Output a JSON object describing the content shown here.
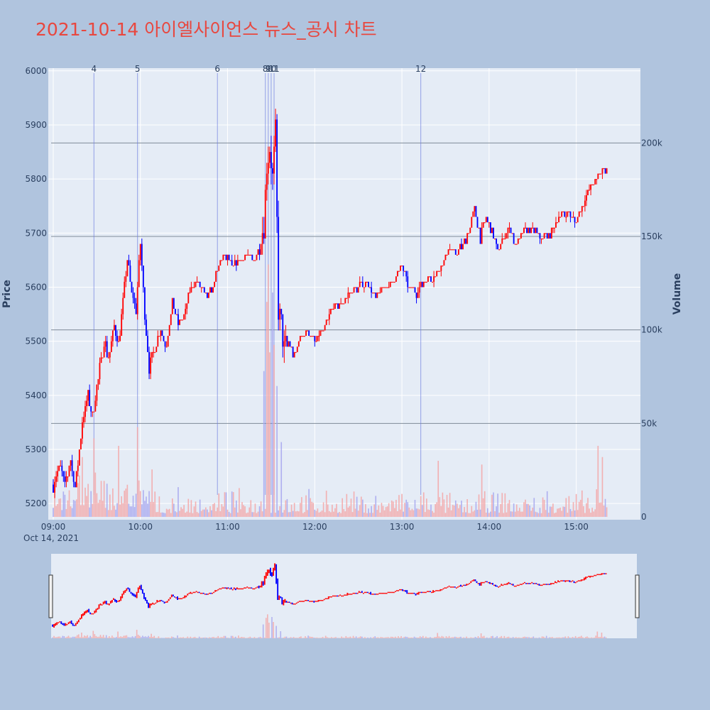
{
  "title": "2021-10-14 아이엘사이언스 뉴스_공시 차트",
  "colors": {
    "up": "#ff0000",
    "down": "#0000ff",
    "vol_up": "#f4a6a6",
    "vol_down": "#a6a6ee",
    "plot_bg": "#e5ecf6",
    "paper_bg": "#b0c4de",
    "title": "#e8473f",
    "news_line": "#6f7fe0"
  },
  "chart_data": {
    "type": "candlestick",
    "y_axis": {
      "label": "Price",
      "range": [
        5170,
        6005
      ],
      "ticks": [
        5200,
        5300,
        5400,
        5500,
        5600,
        5700,
        5800,
        5900,
        6000
      ],
      "tick_labels": [
        "5200",
        "5300",
        "5400",
        "5500",
        "5600",
        "5700",
        "5800",
        "5900",
        "6000"
      ]
    },
    "y2_axis": {
      "label": "Volume",
      "range": [
        0,
        240000
      ],
      "ticks": [
        0,
        50000,
        100000,
        150000,
        200000
      ],
      "tick_labels": [
        "0",
        "50k",
        "100k",
        "150k",
        "200k"
      ]
    },
    "x_axis": {
      "range": [
        "09:00",
        "15:30"
      ],
      "ticks": [
        "09:00",
        "10:00",
        "11:00",
        "12:00",
        "13:00",
        "14:00",
        "15:00"
      ],
      "tick_labels": [
        "09:00",
        "10:00",
        "11:00",
        "12:00",
        "13:00",
        "14:00",
        "15:00"
      ],
      "date_label": "Oct 14, 2021"
    },
    "news_markers": [
      {
        "label": "4",
        "time": "09:28"
      },
      {
        "label": "5",
        "time": "09:58"
      },
      {
        "label": "6",
        "time": "10:53"
      },
      {
        "label": "8",
        "time": "11:26"
      },
      {
        "label": "9",
        "time": "11:28"
      },
      {
        "label": "10",
        "time": "11:30"
      },
      {
        "label": "11",
        "time": "11:32"
      },
      {
        "label": "12",
        "time": "13:13"
      }
    ],
    "price_path": [
      [
        "09:00",
        5235
      ],
      [
        "09:05",
        5270
      ],
      [
        "09:08",
        5235
      ],
      [
        "09:12",
        5280
      ],
      [
        "09:15",
        5230
      ],
      [
        "09:20",
        5350
      ],
      [
        "09:24",
        5400
      ],
      [
        "09:27",
        5360
      ],
      [
        "09:31",
        5430
      ],
      [
        "09:35",
        5500
      ],
      [
        "09:38",
        5470
      ],
      [
        "09:42",
        5530
      ],
      [
        "09:45",
        5500
      ],
      [
        "09:48",
        5570
      ],
      [
        "09:51",
        5650
      ],
      [
        "09:54",
        5590
      ],
      [
        "09:57",
        5560
      ],
      [
        "10:00",
        5680
      ],
      [
        "10:03",
        5550
      ],
      [
        "10:06",
        5450
      ],
      [
        "10:10",
        5490
      ],
      [
        "10:14",
        5520
      ],
      [
        "10:18",
        5490
      ],
      [
        "10:22",
        5570
      ],
      [
        "10:26",
        5530
      ],
      [
        "10:30",
        5550
      ],
      [
        "10:35",
        5600
      ],
      [
        "10:40",
        5610
      ],
      [
        "10:45",
        5580
      ],
      [
        "10:50",
        5600
      ],
      [
        "10:54",
        5640
      ],
      [
        "10:58",
        5660
      ],
      [
        "11:03",
        5640
      ],
      [
        "11:08",
        5650
      ],
      [
        "11:13",
        5660
      ],
      [
        "11:18",
        5650
      ],
      [
        "11:22",
        5670
      ],
      [
        "11:25",
        5720
      ],
      [
        "11:27",
        5830
      ],
      [
        "11:29",
        5860
      ],
      [
        "11:31",
        5800
      ],
      [
        "11:33",
        5880
      ],
      [
        "11:35",
        5560
      ],
      [
        "11:37",
        5530
      ],
      [
        "11:39",
        5480
      ],
      [
        "11:42",
        5500
      ],
      [
        "11:46",
        5470
      ],
      [
        "11:50",
        5510
      ],
      [
        "11:55",
        5520
      ],
      [
        "12:00",
        5500
      ],
      [
        "12:06",
        5520
      ],
      [
        "12:12",
        5560
      ],
      [
        "12:18",
        5570
      ],
      [
        "12:24",
        5590
      ],
      [
        "12:30",
        5600
      ],
      [
        "12:36",
        5610
      ],
      [
        "12:42",
        5580
      ],
      [
        "12:48",
        5600
      ],
      [
        "12:54",
        5610
      ],
      [
        "13:00",
        5640
      ],
      [
        "13:05",
        5600
      ],
      [
        "13:10",
        5590
      ],
      [
        "13:15",
        5610
      ],
      [
        "13:22",
        5620
      ],
      [
        "13:28",
        5640
      ],
      [
        "13:32",
        5670
      ],
      [
        "13:37",
        5660
      ],
      [
        "13:42",
        5680
      ],
      [
        "13:46",
        5700
      ],
      [
        "13:50",
        5750
      ],
      [
        "13:54",
        5690
      ],
      [
        "13:58",
        5730
      ],
      [
        "14:02",
        5700
      ],
      [
        "14:06",
        5670
      ],
      [
        "14:10",
        5690
      ],
      [
        "14:14",
        5710
      ],
      [
        "14:18",
        5680
      ],
      [
        "14:24",
        5700
      ],
      [
        "14:30",
        5710
      ],
      [
        "14:36",
        5690
      ],
      [
        "14:42",
        5700
      ],
      [
        "14:48",
        5730
      ],
      [
        "14:54",
        5740
      ],
      [
        "15:00",
        5720
      ],
      [
        "15:04",
        5750
      ],
      [
        "15:08",
        5780
      ],
      [
        "15:12",
        5790
      ],
      [
        "15:16",
        5810
      ],
      [
        "15:19",
        5820
      ],
      [
        "15:21",
        5815
      ]
    ],
    "volume_spikes": [
      [
        "09:20",
        32000
      ],
      [
        "09:28",
        42000
      ],
      [
        "09:45",
        38000
      ],
      [
        "09:58",
        48000
      ],
      [
        "11:25",
        78000
      ],
      [
        "11:27",
        115000
      ],
      [
        "11:28",
        135000
      ],
      [
        "11:29",
        88000
      ],
      [
        "11:31",
        120000
      ],
      [
        "11:32",
        92000
      ],
      [
        "11:34",
        70000
      ],
      [
        "11:37",
        40000
      ],
      [
        "13:25",
        30000
      ],
      [
        "13:55",
        28000
      ],
      [
        "15:15",
        38000
      ],
      [
        "15:18",
        32000
      ]
    ]
  }
}
